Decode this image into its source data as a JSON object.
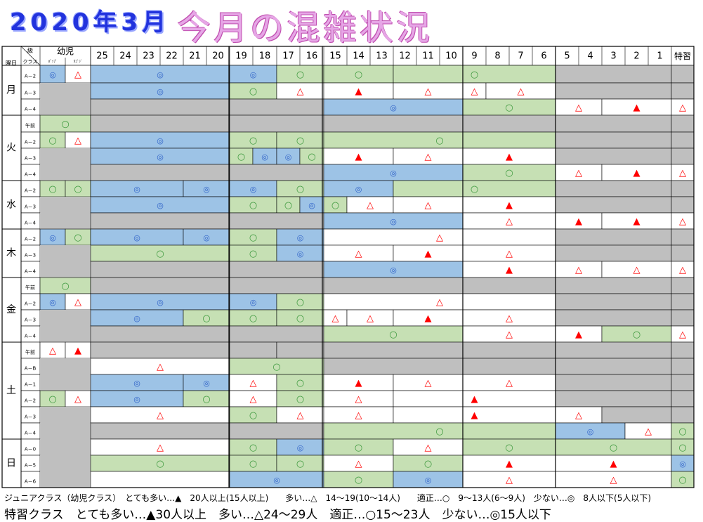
{
  "title": {
    "date": "2020年3月",
    "main": "今月の混雑状況"
  },
  "header": {
    "youbi": "曜日",
    "kyuu": "級",
    "class": "クラス",
    "youji": "幼児",
    "youji_sub": [
      "ﾎﾟｯﾌﾟ",
      "ﾀｺﾞｼﾞ"
    ],
    "dates": [
      "25",
      "24",
      "23",
      "22",
      "21",
      "20",
      "19",
      "18",
      "17",
      "16",
      "15",
      "14",
      "13",
      "12",
      "11",
      "10",
      "9",
      "8",
      "7",
      "6",
      "5",
      "4",
      "3",
      "2",
      "1"
    ],
    "tokushu": "特習"
  },
  "days": [
    {
      "day": "月",
      "rows": [
        "A－2",
        "A－3",
        "A－4"
      ]
    },
    {
      "day": "火",
      "rows": [
        "午前",
        "A－2",
        "A－3",
        "A－4"
      ]
    },
    {
      "day": "水",
      "rows": [
        "A－2",
        "A－3",
        "A－4"
      ]
    },
    {
      "day": "木",
      "rows": [
        "A－2",
        "A－3",
        "A－4"
      ]
    },
    {
      "day": "金",
      "rows": [
        "午前",
        "A－2",
        "A－3",
        "A－4"
      ]
    },
    {
      "day": "土",
      "rows": [
        "午前",
        "A－B",
        "A－1",
        "A－2",
        "A－3",
        "A－4"
      ]
    },
    {
      "day": "日",
      "rows": [
        "A－0",
        "A－5",
        "A－6"
      ]
    }
  ],
  "symbols": {
    "few": "◎",
    "ok": "○",
    "many": "△",
    "verymany": "▲"
  },
  "colors": {
    "few": "#9dc3e6",
    "ok": "#c6e0b4",
    "many": "#ffffff",
    "gray": "#bfbfbf",
    "red": "#ff0000",
    "blue": "#2f62c8",
    "green": "#3f9a3f"
  },
  "legend": {
    "junior": "ジュニアクラス（幼児クラス）　とても多い…▲　20人以上(15人以上)　　多い…△　14～19(10～14人)　　適正…○　9～13人(6～9人)　少ない…◎　8人以下(5人以下)",
    "tokushu": "特習クラス　とても多い…▲30人以上　多い…△24～29人　適正…○15～23人　少ない…◎15人以下"
  }
}
